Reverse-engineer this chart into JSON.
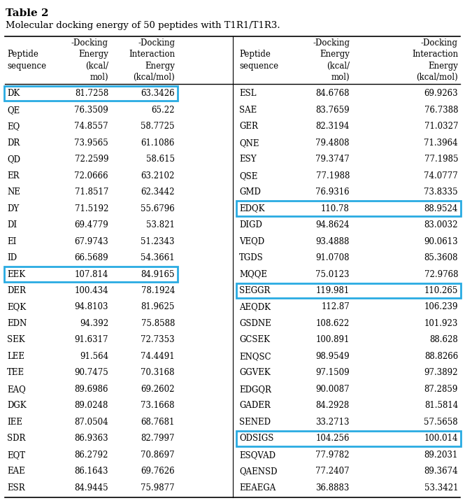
{
  "title": "Table 2",
  "subtitle": "Molecular docking energy of 50 peptides with T1R1/T1R3.",
  "left_data": [
    [
      "DK",
      "81.7258",
      "63.3426",
      true
    ],
    [
      "QE",
      "76.3509",
      "65.22",
      false
    ],
    [
      "EQ",
      "74.8557",
      "58.7725",
      false
    ],
    [
      "DR",
      "73.9565",
      "61.1086",
      false
    ],
    [
      "QD",
      "72.2599",
      "58.615",
      false
    ],
    [
      "ER",
      "72.0666",
      "63.2102",
      false
    ],
    [
      "NE",
      "71.8517",
      "62.3442",
      false
    ],
    [
      "DY",
      "71.5192",
      "55.6796",
      false
    ],
    [
      "DI",
      "69.4779",
      "53.821",
      false
    ],
    [
      "EI",
      "67.9743",
      "51.2343",
      false
    ],
    [
      "ID",
      "66.5689",
      "54.3661",
      false
    ],
    [
      "EEK",
      "107.814",
      "84.9165",
      true
    ],
    [
      "DER",
      "100.434",
      "78.1924",
      false
    ],
    [
      "EQK",
      "94.8103",
      "81.9625",
      false
    ],
    [
      "EDN",
      "94.392",
      "75.8588",
      false
    ],
    [
      "SEK",
      "91.6317",
      "72.7353",
      false
    ],
    [
      "LEE",
      "91.564",
      "74.4491",
      false
    ],
    [
      "TEE",
      "90.7475",
      "70.3168",
      false
    ],
    [
      "EAQ",
      "89.6986",
      "69.2602",
      false
    ],
    [
      "DGK",
      "89.0248",
      "73.1668",
      false
    ],
    [
      "IEE",
      "87.0504",
      "68.7681",
      false
    ],
    [
      "SDR",
      "86.9363",
      "82.7997",
      false
    ],
    [
      "EQT",
      "86.2792",
      "70.8697",
      false
    ],
    [
      "EAE",
      "86.1643",
      "69.7626",
      false
    ],
    [
      "ESR",
      "84.9445",
      "75.9877",
      false
    ]
  ],
  "right_data": [
    [
      "ESL",
      "84.6768",
      "69.9263",
      false
    ],
    [
      "SAE",
      "83.7659",
      "76.7388",
      false
    ],
    [
      "GER",
      "82.3194",
      "71.0327",
      false
    ],
    [
      "QNE",
      "79.4808",
      "71.3964",
      false
    ],
    [
      "ESY",
      "79.3747",
      "77.1985",
      false
    ],
    [
      "QSE",
      "77.1988",
      "74.0777",
      false
    ],
    [
      "GMD",
      "76.9316",
      "73.8335",
      false
    ],
    [
      "EDQK",
      "110.78",
      "88.9524",
      true
    ],
    [
      "DIGD",
      "94.8624",
      "83.0032",
      false
    ],
    [
      "VEQD",
      "93.4888",
      "90.0613",
      false
    ],
    [
      "TGDS",
      "91.0708",
      "85.3608",
      false
    ],
    [
      "MQQE",
      "75.0123",
      "72.9768",
      false
    ],
    [
      "SEGGR",
      "119.981",
      "110.265",
      true
    ],
    [
      "AEQDK",
      "112.87",
      "106.239",
      false
    ],
    [
      "GSDNE",
      "108.622",
      "101.923",
      false
    ],
    [
      "GCSEK",
      "100.891",
      "88.628",
      false
    ],
    [
      "ENQSC",
      "98.9549",
      "88.8266",
      false
    ],
    [
      "GGVEK",
      "97.1509",
      "97.3892",
      false
    ],
    [
      "EDGQR",
      "90.0087",
      "87.2859",
      false
    ],
    [
      "GADER",
      "84.2928",
      "81.5814",
      false
    ],
    [
      "SENED",
      "33.2713",
      "57.5658",
      false
    ],
    [
      "ODSIGS",
      "104.256",
      "100.014",
      true
    ],
    [
      "ESQVAD",
      "77.9782",
      "89.2031",
      false
    ],
    [
      "QAENSD",
      "77.2407",
      "89.3674",
      false
    ],
    [
      "EEAEGA",
      "36.8883",
      "53.3421",
      false
    ]
  ],
  "highlight_color": "#29abe2",
  "bg_color": "#ffffff",
  "font_family": "DejaVu Serif",
  "title_fontsize": 11,
  "subtitle_fontsize": 9.5,
  "header_fontsize": 8.5,
  "data_fontsize": 8.5
}
